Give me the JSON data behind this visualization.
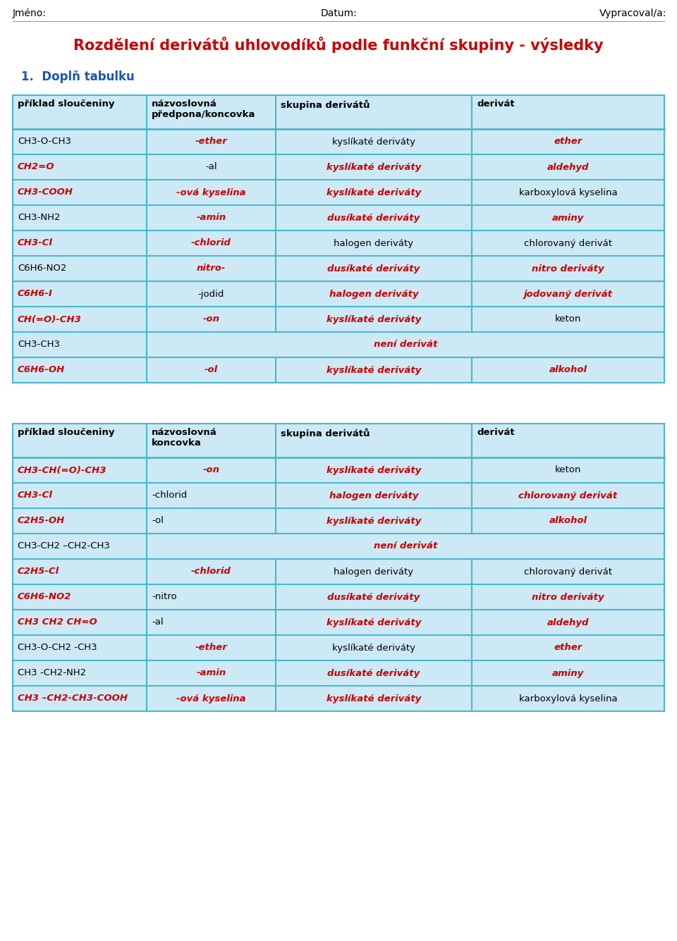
{
  "title": "Rozdělení derivátů uhlovodíků podle funkční skupiny - výsledky",
  "subtitle": "1.  Doplň tabulku",
  "header_top": [
    "Jméno:",
    "Datum:",
    "Vypracoval/a:"
  ],
  "bg_color": "#ffffff",
  "table_bg": "#cce9f5",
  "border_color": "#4ab8cc",
  "red": "#cc0000",
  "black": "#000000",
  "table1_headers": [
    "příklad sloučeniny",
    "názvoslovná\npředpona/koncovka",
    "skupina derivátů",
    "derivát"
  ],
  "table1_rows": [
    {
      "col0": "CH3-O-CH3",
      "col0_red": false,
      "col1": "-ether",
      "col1_red": true,
      "col1_center": true,
      "col2": "kyslíkaté deriváty",
      "col2_red": false,
      "col3": "ether",
      "col3_red": true,
      "span": false
    },
    {
      "col0": "CH2=O",
      "col0_red": true,
      "col1": "-al",
      "col1_red": false,
      "col1_center": true,
      "col2": "kyslíkaté deriváty",
      "col2_red": true,
      "col3": "aldehyd",
      "col3_red": true,
      "span": false
    },
    {
      "col0": "CH3-COOH",
      "col0_red": true,
      "col1": "-ová kyselina",
      "col1_red": true,
      "col1_center": true,
      "col2": "kyslíkaté deriváty",
      "col2_red": true,
      "col3": "karboxylová kyselina",
      "col3_red": false,
      "span": false
    },
    {
      "col0": "CH3-NH2",
      "col0_red": false,
      "col1": "-amin",
      "col1_red": true,
      "col1_center": true,
      "col2": "dusíkaté deriváty",
      "col2_red": true,
      "col3": "aminy",
      "col3_red": true,
      "span": false
    },
    {
      "col0": "CH3-Cl",
      "col0_red": true,
      "col1": "-chlorid",
      "col1_red": true,
      "col1_center": true,
      "col2": "halogen deriváty",
      "col2_red": false,
      "col3": "chlorovaný derivát",
      "col3_red": false,
      "span": false
    },
    {
      "col0": "C6H6-NO2",
      "col0_red": false,
      "col1": "nitro-",
      "col1_red": true,
      "col1_center": true,
      "col2": "dusíkaté deriváty",
      "col2_red": true,
      "col3": "nitro deriváty",
      "col3_red": true,
      "span": false
    },
    {
      "col0": "C6H6-I",
      "col0_red": true,
      "col1": "-jodid",
      "col1_red": false,
      "col1_center": true,
      "col2": "halogen deriváty",
      "col2_red": true,
      "col3": "jodovaný derivát",
      "col3_red": true,
      "span": false
    },
    {
      "col0": "CH(=O)-CH3",
      "col0_red": true,
      "col1": "-on",
      "col1_red": true,
      "col1_center": true,
      "col2": "kyslíkaté deriváty",
      "col2_red": true,
      "col3": "keton",
      "col3_red": false,
      "span": false
    },
    {
      "col0": "CH3-CH3",
      "col0_red": false,
      "col1": "",
      "col1_red": false,
      "col1_center": true,
      "col2": "není derivát",
      "col2_red": true,
      "col3": "",
      "col3_red": false,
      "span": true
    },
    {
      "col0": "C6H6-OH",
      "col0_red": true,
      "col1": "-ol",
      "col1_red": true,
      "col1_center": true,
      "col2": "kyslíkaté deriváty",
      "col2_red": true,
      "col3": "alkohol",
      "col3_red": true,
      "span": false
    }
  ],
  "table2_headers": [
    "příklad sloučeniny",
    "názvoslovná\nkoncovka",
    "skupina derivátů",
    "derivát"
  ],
  "table2_rows": [
    {
      "col0": "CH3-CH(=O)-CH3",
      "col0_red": true,
      "col1": "-on",
      "col1_red": true,
      "col1_center": true,
      "col2": "kyslíkaté deriváty",
      "col2_red": true,
      "col3": "keton",
      "col3_red": false,
      "span": false
    },
    {
      "col0": "CH3-Cl",
      "col0_red": true,
      "col1": "-chlorid",
      "col1_red": false,
      "col1_center": false,
      "col2": "halogen deriváty",
      "col2_red": true,
      "col3": "chlorovaný derivát",
      "col3_red": true,
      "span": false
    },
    {
      "col0": "C2H5-OH",
      "col0_red": true,
      "col1": "-ol",
      "col1_red": false,
      "col1_center": false,
      "col2": "kyslíkaté deriváty",
      "col2_red": true,
      "col3": "alkohol",
      "col3_red": true,
      "span": false
    },
    {
      "col0": "CH3-CH2 –CH2-CH3",
      "col0_red": false,
      "col1": "",
      "col1_red": false,
      "col1_center": true,
      "col2": "není derivát",
      "col2_red": true,
      "col3": "",
      "col3_red": false,
      "span": true
    },
    {
      "col0": "C2H5-Cl",
      "col0_red": true,
      "col1": "-chlorid",
      "col1_red": true,
      "col1_center": true,
      "col2": "halogen deriváty",
      "col2_red": false,
      "col3": "chlorovaný derivát",
      "col3_red": false,
      "span": false
    },
    {
      "col0": "C6H6-NO2",
      "col0_red": true,
      "col1": "-nitro",
      "col1_red": false,
      "col1_center": false,
      "col2": "dusíkaté deriváty",
      "col2_red": true,
      "col3": "nitro deriváty",
      "col3_red": true,
      "span": false
    },
    {
      "col0": "CH3 CH2 CH=O",
      "col0_red": true,
      "col1": "-al",
      "col1_red": false,
      "col1_center": false,
      "col2": "kyslíkaté deriváty",
      "col2_red": true,
      "col3": "aldehyd",
      "col3_red": true,
      "span": false
    },
    {
      "col0": "CH3-O-CH2 -CH3",
      "col0_red": false,
      "col1": "-ether",
      "col1_red": true,
      "col1_center": true,
      "col2": "kyslíkaté deriváty",
      "col2_red": false,
      "col3": "ether",
      "col3_red": true,
      "span": false
    },
    {
      "col0": "CH3 -CH2-NH2",
      "col0_red": false,
      "col1": "-amin",
      "col1_red": true,
      "col1_center": true,
      "col2": "dusíkaté deriváty",
      "col2_red": true,
      "col3": "aminy",
      "col3_red": true,
      "span": false
    },
    {
      "col0": "CH3 –CH2-CH3-COOH",
      "col0_red": true,
      "col1": "-ová kyselina",
      "col1_red": true,
      "col1_center": true,
      "col2": "kyslíkaté deriváty",
      "col2_red": true,
      "col3": "karboxylová kyselina",
      "col3_red": false,
      "span": false
    }
  ]
}
